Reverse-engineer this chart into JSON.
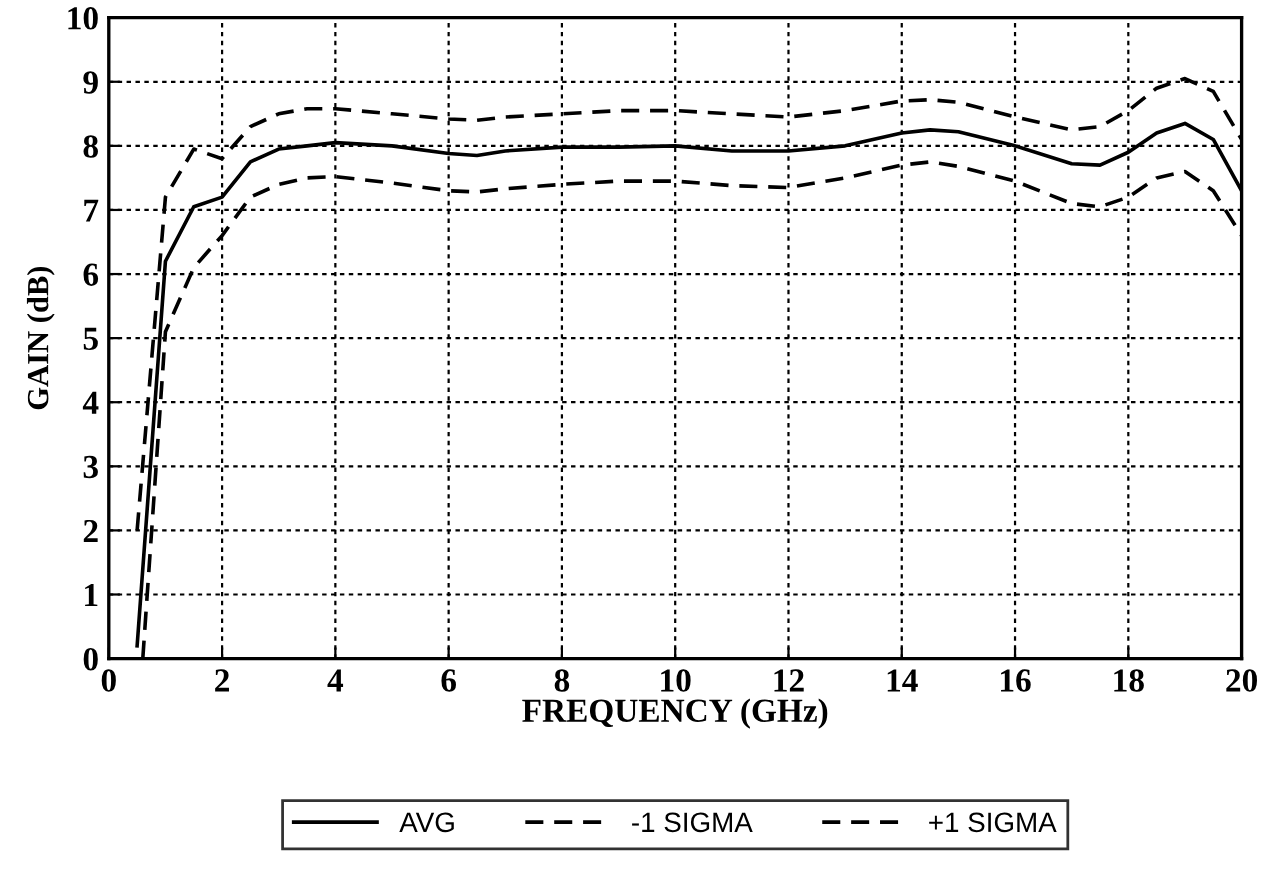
{
  "chart_data": {
    "type": "line",
    "xlabel": "FREQUENCY (GHz)",
    "ylabel": "GAIN (dB)",
    "xlim": [
      0,
      20
    ],
    "xticks": [
      0,
      2,
      4,
      6,
      8,
      10,
      12,
      14,
      16,
      18,
      20
    ],
    "ylim": [
      0,
      10
    ],
    "yticks": [
      0,
      1,
      2,
      3,
      4,
      5,
      6,
      7,
      8,
      9,
      10
    ],
    "grid": true,
    "legend": "bottom",
    "marker": "none",
    "series": [
      {
        "name": "AVG",
        "color": "#000000",
        "line_style": "solid",
        "x": [
          0.5,
          1,
          1.5,
          2,
          2.5,
          3,
          3.5,
          4,
          5,
          6,
          6.5,
          7,
          8,
          9,
          10,
          11,
          12,
          13,
          14,
          14.5,
          15,
          16,
          17,
          17.5,
          18,
          18.5,
          19,
          19.5,
          20
        ],
        "values": [
          0.2,
          6.2,
          7.05,
          7.2,
          7.75,
          7.95,
          8.0,
          8.05,
          8.0,
          7.88,
          7.85,
          7.92,
          7.98,
          7.98,
          8.0,
          7.92,
          7.92,
          8.0,
          8.2,
          8.25,
          8.22,
          8.0,
          7.72,
          7.7,
          7.9,
          8.2,
          8.35,
          8.1,
          7.3
        ]
      },
      {
        "name": "-1 SIGMA",
        "color": "#000000",
        "line_style": "dashed",
        "x": [
          0.6,
          1,
          1.5,
          2,
          2.5,
          3,
          3.5,
          4,
          5,
          6,
          6.5,
          7,
          8,
          9,
          10,
          11,
          12,
          13,
          14,
          14.5,
          15,
          16,
          17,
          17.5,
          18,
          18.5,
          19,
          19.5,
          20
        ],
        "values": [
          0.0,
          5.1,
          6.1,
          6.6,
          7.2,
          7.4,
          7.5,
          7.52,
          7.42,
          7.3,
          7.28,
          7.33,
          7.4,
          7.45,
          7.45,
          7.38,
          7.35,
          7.5,
          7.7,
          7.75,
          7.68,
          7.45,
          7.1,
          7.05,
          7.2,
          7.5,
          7.6,
          7.3,
          6.6
        ]
      },
      {
        "name": "+1 SIGMA",
        "color": "#000000",
        "line_style": "dashed",
        "x": [
          0.5,
          1,
          1.5,
          2,
          2.5,
          3,
          3.5,
          4,
          5,
          6,
          6.5,
          7,
          8,
          9,
          10,
          11,
          12,
          13,
          14,
          14.5,
          15,
          16,
          17,
          17.5,
          18,
          18.5,
          19,
          19.5,
          20
        ],
        "values": [
          2.0,
          7.2,
          7.95,
          7.8,
          8.3,
          8.5,
          8.58,
          8.58,
          8.5,
          8.42,
          8.4,
          8.45,
          8.5,
          8.55,
          8.55,
          8.5,
          8.45,
          8.55,
          8.7,
          8.72,
          8.68,
          8.45,
          8.25,
          8.3,
          8.55,
          8.9,
          9.05,
          8.85,
          8.1
        ]
      }
    ]
  }
}
